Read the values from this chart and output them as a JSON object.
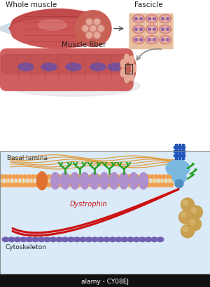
{
  "top_bg": "#ffffff",
  "bottom_bg": "#daeaf8",
  "membrane_head_color": "#f0a050",
  "membrane_tail_color": "#f5c87a",
  "whole_muscle_dark": "#b84040",
  "whole_muscle_mid": "#cc5555",
  "whole_muscle_light": "#e09090",
  "fascicle_bg": "#e8c0a0",
  "fascicle_cell": "#c86060",
  "fascicle_nucleus": "#9060b0",
  "fiber_color": "#d06060",
  "fiber_dark": "#b04040",
  "fiber_shadow": "#e8c0c0",
  "nucleus_color": "#7050a0",
  "orange_prot": "#e07030",
  "purple_prot": "#b090cc",
  "green_branch": "#22a022",
  "receptor_light": "#7ab8e0",
  "receptor_dark": "#5090c0",
  "receptor_bar": "#2255bb",
  "tan_ball": "#c8a050",
  "dystrophin_color": "#cc1010",
  "cyto_color": "#7060b0",
  "basal_color": "#e09020",
  "arrow_color": "#888888",
  "sinew_color": "#c8d8e8",
  "labels": {
    "whole_muscle": "Whole muscle",
    "fascicle": "Fascicle",
    "muscle_fiber": "Muscle fiber",
    "basal_lamina": "Basal lamina",
    "dystrophin": "Dystrophin",
    "cytoskeleton": "Cytoskeleton",
    "alamy": "alamy - CY08EJ"
  }
}
